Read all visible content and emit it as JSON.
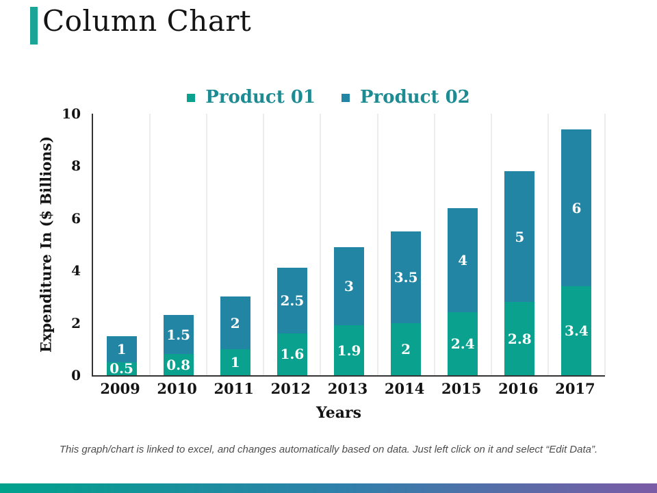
{
  "title": "Column Chart",
  "footnote": "This graph/chart is linked to excel, and changes automatically based on data. Just left click on it and select “Edit Data”.",
  "colors": {
    "accent_bar": "#1aa597",
    "product_01": "#0aa28e",
    "product_02": "#2285a4",
    "legend_text": "#1e8a92",
    "gridline": "#d9d9d9",
    "axis_line": "#333333",
    "bar_label": "#ffffff",
    "footer_gradient_left": "#00a28c",
    "footer_gradient_right": "#7b5ba6"
  },
  "chart_data": {
    "type": "bar",
    "stacked": true,
    "title": "",
    "categories": [
      "2009",
      "2010",
      "2011",
      "2012",
      "2013",
      "2014",
      "2015",
      "2016",
      "2017"
    ],
    "series": [
      {
        "name": "Product 01",
        "color": "#0aa28e",
        "values": [
          0.5,
          0.8,
          1,
          1.6,
          1.9,
          2,
          2.4,
          2.8,
          3.4
        ]
      },
      {
        "name": "Product 02",
        "color": "#2285a4",
        "values": [
          1,
          1.5,
          2,
          2.5,
          3,
          3.5,
          4,
          5,
          6
        ]
      }
    ],
    "xlabel": "Years",
    "ylabel": "Expenditure In ($ Billions)",
    "ylim": [
      0,
      10
    ],
    "yticks": [
      0,
      2,
      4,
      6,
      8,
      10
    ],
    "grid": "vertical-only",
    "legend_position": "top",
    "data_labels": "inside-center-white"
  }
}
